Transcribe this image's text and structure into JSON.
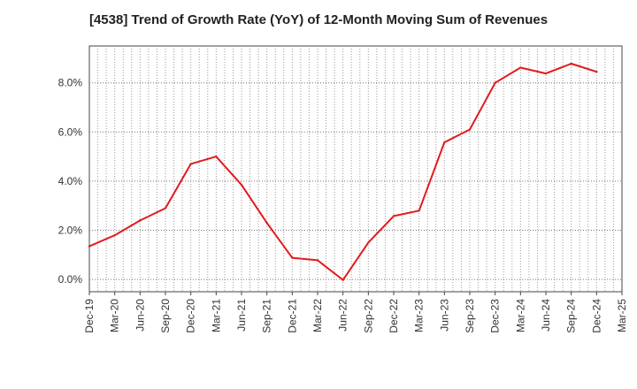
{
  "chart_data": {
    "type": "line",
    "title": "[4538]  Trend of Growth Rate (YoY) of 12-Month Moving Sum of Revenues",
    "xlabel": "",
    "ylabel": "",
    "x": [
      "Dec-19",
      "Mar-20",
      "Jun-20",
      "Sep-20",
      "Dec-20",
      "Mar-21",
      "Jun-21",
      "Sep-21",
      "Dec-21",
      "Mar-22",
      "Jun-22",
      "Sep-22",
      "Dec-22",
      "Mar-23",
      "Jun-23",
      "Sep-23",
      "Dec-23",
      "Mar-24",
      "Jun-24",
      "Sep-24",
      "Dec-24",
      "Mar-25"
    ],
    "series": [
      {
        "name": "",
        "color": "#e31a1c",
        "values": [
          1.35,
          1.8,
          2.4,
          2.9,
          4.7,
          5.0,
          3.85,
          2.3,
          0.88,
          0.78,
          -0.02,
          1.5,
          2.58,
          2.8,
          5.58,
          6.1,
          8.0,
          8.62,
          8.38,
          8.78,
          8.45,
          null
        ]
      }
    ],
    "yticks": [
      0,
      2,
      4,
      6,
      8
    ],
    "ytick_labels": [
      "0.0%",
      "2.0%",
      "4.0%",
      "6.0%",
      "8.0%"
    ],
    "ylim": [
      -0.5,
      9.5
    ],
    "grid": true,
    "legend": "none"
  }
}
